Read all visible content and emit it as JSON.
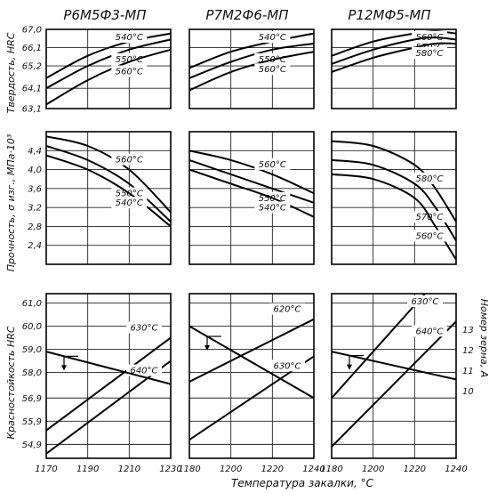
{
  "chart_data": {
    "type": "line",
    "xlabel": "Температура закалки, °C",
    "column_titles": [
      "Р6М5Ф3-МП",
      "Р7М2Ф6-МП",
      "Р12МФ5-МП"
    ],
    "row_ylabels": [
      "Твердость, HRC",
      "Прочность, σ изг., МПа·10³",
      "Красностойкость HRC"
    ],
    "right_ylabel": "Номер зерна, А",
    "right_ticks": [
      "10",
      "11",
      "12",
      "13"
    ],
    "xticks": [
      [
        "1170",
        "1190",
        "1210",
        "1230"
      ],
      [
        "1180",
        "1200",
        "1220",
        "1240"
      ],
      [
        "1180",
        "1200",
        "1220",
        "1240"
      ]
    ],
    "panels": [
      {
        "row": 0,
        "col": 0,
        "xlim": [
          1170,
          1230
        ],
        "ylim": [
          63.1,
          67.0
        ],
        "yticks": [
          "67,0",
          "66,1",
          "65,2",
          "64,1",
          "63,1"
        ],
        "series": [
          {
            "name": "540°C",
            "x": [
              1170,
              1190,
              1210,
              1230
            ],
            "y": [
              64.6,
              65.7,
              66.4,
              66.8
            ]
          },
          {
            "name": "550°C",
            "x": [
              1170,
              1190,
              1210,
              1230
            ],
            "y": [
              64.1,
              65.2,
              66.0,
              66.5
            ]
          },
          {
            "name": "560°C",
            "x": [
              1170,
              1190,
              1210,
              1230
            ],
            "y": [
              63.3,
              64.5,
              65.4,
              66.0
            ]
          }
        ]
      },
      {
        "row": 0,
        "col": 1,
        "xlim": [
          1180,
          1240
        ],
        "ylim": [
          63.1,
          67.0
        ],
        "series": [
          {
            "name": "540°C",
            "x": [
              1180,
              1200,
              1220,
              1240
            ],
            "y": [
              65.1,
              65.9,
              66.4,
              66.8
            ]
          },
          {
            "name": "550°C",
            "x": [
              1180,
              1200,
              1220,
              1240
            ],
            "y": [
              64.6,
              65.4,
              66.0,
              66.3
            ]
          },
          {
            "name": "560°C",
            "x": [
              1180,
              1200,
              1220,
              1240
            ],
            "y": [
              64.0,
              64.9,
              65.5,
              65.9
            ]
          }
        ]
      },
      {
        "row": 0,
        "col": 2,
        "xlim": [
          1180,
          1240
        ],
        "ylim": [
          63.1,
          67.0
        ],
        "series": [
          {
            "name": "560°C",
            "x": [
              1180,
              1200,
              1220,
              1230,
              1240
            ],
            "y": [
              65.7,
              66.4,
              66.8,
              66.9,
              66.8
            ]
          },
          {
            "name": "570°C",
            "x": [
              1180,
              1200,
              1220,
              1230,
              1240
            ],
            "y": [
              65.3,
              66.0,
              66.5,
              66.6,
              66.5
            ]
          },
          {
            "name": "580°C",
            "x": [
              1180,
              1200,
              1220,
              1230,
              1240
            ],
            "y": [
              64.9,
              65.6,
              66.1,
              66.3,
              66.3
            ]
          }
        ]
      },
      {
        "row": 1,
        "col": 0,
        "xlim": [
          1170,
          1230
        ],
        "ylim": [
          2.0,
          4.8
        ],
        "yticks": [
          "4,4",
          "4,0",
          "3,6",
          "3,2",
          "2,8",
          "2,4"
        ],
        "series": [
          {
            "name": "560°C",
            "x": [
              1170,
              1190,
              1210,
              1230
            ],
            "y": [
              4.7,
              4.5,
              4.0,
              3.1
            ]
          },
          {
            "name": "550°C",
            "x": [
              1170,
              1190,
              1210,
              1230
            ],
            "y": [
              4.5,
              4.2,
              3.7,
              2.9
            ]
          },
          {
            "name": "540°C",
            "x": [
              1170,
              1190,
              1210,
              1230
            ],
            "y": [
              4.3,
              4.0,
              3.5,
              2.8
            ]
          }
        ]
      },
      {
        "row": 1,
        "col": 1,
        "xlim": [
          1180,
          1240
        ],
        "ylim": [
          2.0,
          4.8
        ],
        "series": [
          {
            "name": "560°C",
            "x": [
              1180,
              1200,
              1220,
              1240
            ],
            "y": [
              4.4,
              4.2,
              3.9,
              3.5
            ]
          },
          {
            "name": "550°C",
            "x": [
              1180,
              1200,
              1220,
              1240
            ],
            "y": [
              4.2,
              3.9,
              3.6,
              3.3
            ]
          },
          {
            "name": "540°C",
            "x": [
              1180,
              1200,
              1220,
              1240
            ],
            "y": [
              4.0,
              3.7,
              3.4,
              3.0
            ]
          }
        ]
      },
      {
        "row": 1,
        "col": 2,
        "xlim": [
          1180,
          1240
        ],
        "ylim": [
          2.0,
          4.8
        ],
        "series": [
          {
            "name": "580°C",
            "x": [
              1180,
              1200,
              1220,
              1230,
              1240
            ],
            "y": [
              4.6,
              4.5,
              4.1,
              3.6,
              2.9
            ]
          },
          {
            "name": "570°C",
            "x": [
              1180,
              1200,
              1220,
              1230,
              1240
            ],
            "y": [
              4.2,
              4.1,
              3.7,
              3.2,
              2.5
            ]
          },
          {
            "name": "560°C",
            "x": [
              1180,
              1200,
              1220,
              1230,
              1240
            ],
            "y": [
              3.9,
              3.8,
              3.4,
              2.8,
              2.1
            ]
          }
        ]
      },
      {
        "row": 2,
        "col": 0,
        "xlim": [
          1170,
          1230
        ],
        "ylim": [
          54.3,
          61.4
        ],
        "yticks": [
          "61,0",
          "60,0",
          "59,0",
          "58,0",
          "56,9",
          "55,9",
          "54,9"
        ],
        "series": [
          {
            "name": "630°C",
            "x": [
              1170,
              1230
            ],
            "y": [
              55.5,
              59.5
            ]
          },
          {
            "name": "640°C",
            "x": [
              1170,
              1230
            ],
            "y": [
              54.5,
              58.5
            ]
          },
          {
            "name": "grain",
            "x": [
              1170,
              1230
            ],
            "y": [
              58.9,
              57.5
            ]
          }
        ]
      },
      {
        "row": 2,
        "col": 1,
        "xlim": [
          1180,
          1240
        ],
        "ylim": [
          54.3,
          61.4
        ],
        "series": [
          {
            "name": "620°C",
            "x": [
              1180,
              1240
            ],
            "y": [
              57.6,
              60.3
            ]
          },
          {
            "name": "630°C",
            "x": [
              1180,
              1240
            ],
            "y": [
              55.1,
              58.7
            ]
          },
          {
            "name": "grain",
            "x": [
              1180,
              1240
            ],
            "y": [
              60.0,
              56.9
            ]
          }
        ]
      },
      {
        "row": 2,
        "col": 2,
        "xlim": [
          1180,
          1240
        ],
        "ylim": [
          54.3,
          61.4
        ],
        "series": [
          {
            "name": "630°C",
            "x": [
              1180,
              1225
            ],
            "y": [
              56.9,
              61.4
            ]
          },
          {
            "name": "640°C",
            "x": [
              1180,
              1240
            ],
            "y": [
              54.8,
              60.2
            ]
          },
          {
            "name": "grain",
            "x": [
              1180,
              1240
            ],
            "y": [
              58.9,
              57.7
            ]
          }
        ]
      }
    ]
  }
}
